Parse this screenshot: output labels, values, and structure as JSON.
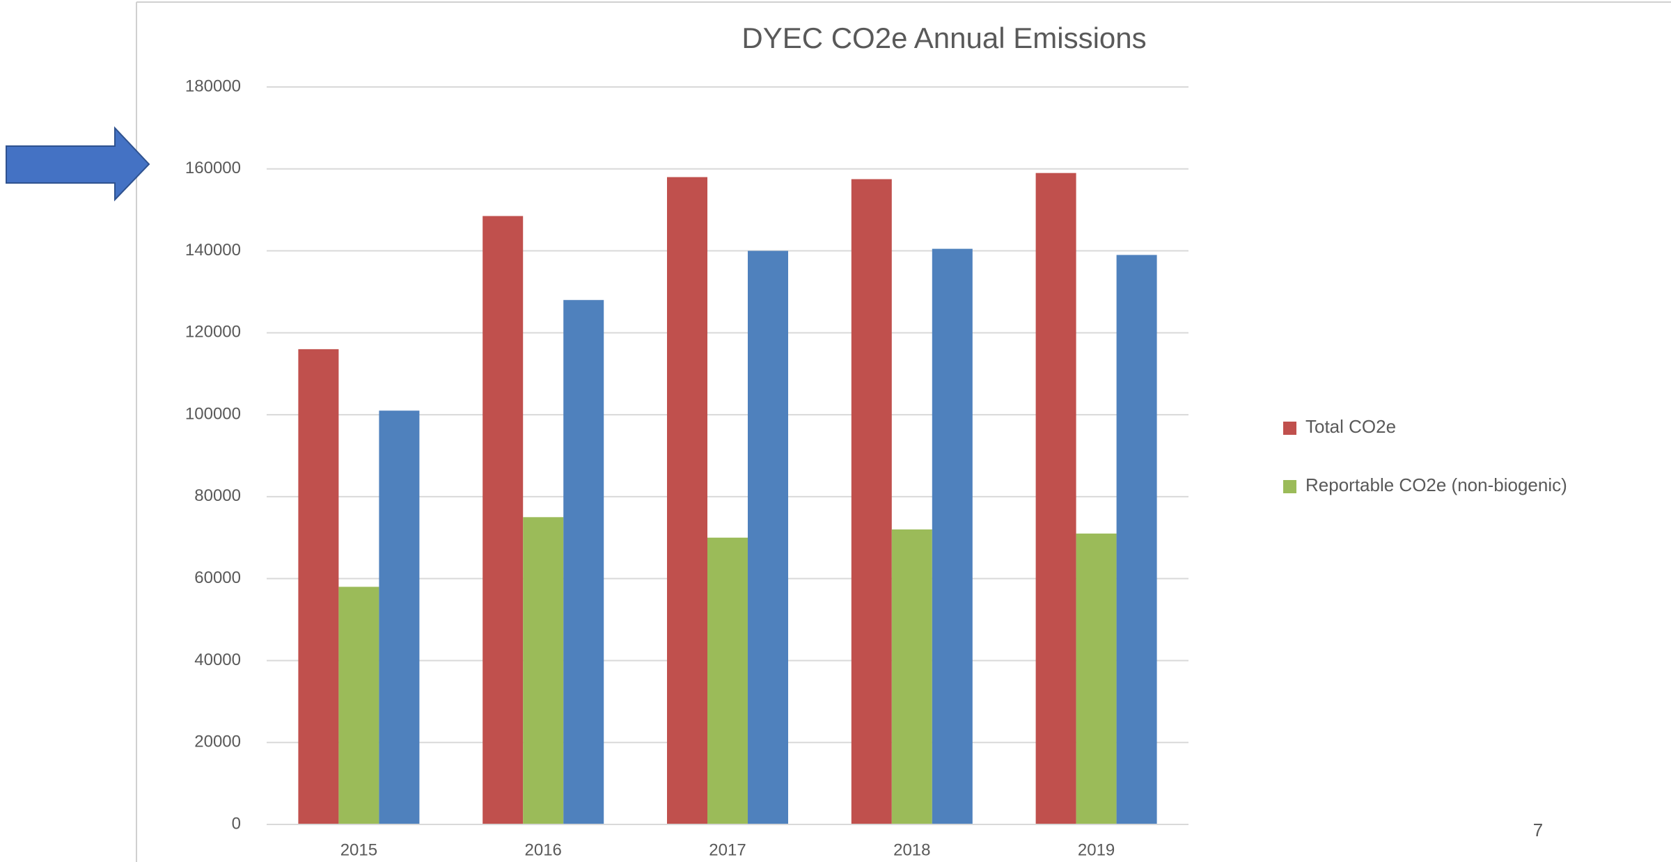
{
  "chart_data": {
    "type": "bar",
    "title": "DYEC CO2e Annual Emissions",
    "categories": [
      "2015",
      "2016",
      "2017",
      "2018",
      "2019"
    ],
    "series": [
      {
        "name": "Total CO2e",
        "color": "#c0504d",
        "values": [
          116000,
          148500,
          158000,
          157500,
          159000
        ]
      },
      {
        "name": "Reportable CO2e (non-biogenic)",
        "color": "#9bbb59",
        "values": [
          58000,
          75000,
          70000,
          72000,
          71000
        ]
      },
      {
        "color": "#4f81bd",
        "values": [
          101000,
          128000,
          140000,
          140500,
          139000
        ]
      }
    ],
    "ylim": [
      0,
      180000
    ],
    "yticks": [
      0,
      20000,
      40000,
      60000,
      80000,
      100000,
      120000,
      140000,
      160000,
      180000
    ],
    "grid": true,
    "legend": "right"
  },
  "page_number": "7"
}
